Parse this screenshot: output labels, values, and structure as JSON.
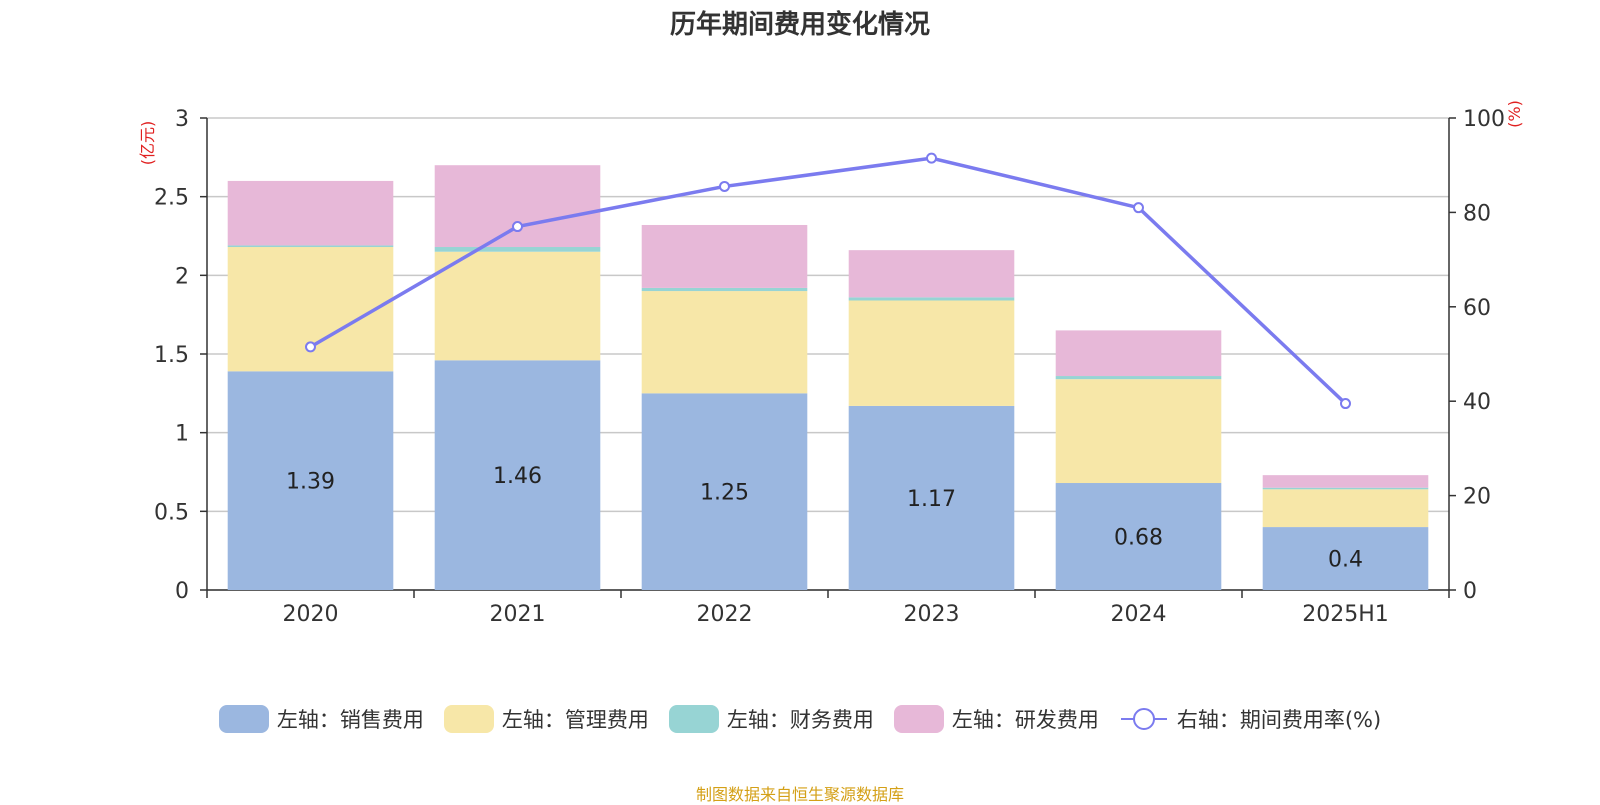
{
  "chart_data": {
    "type": "bar",
    "title": "历年期间费用变化情况",
    "categories": [
      "2020",
      "2021",
      "2022",
      "2023",
      "2024",
      "2025H1"
    ],
    "series": [
      {
        "name": "左轴：销售费用",
        "axis": "left",
        "color": "#9bb7e0",
        "values": [
          1.39,
          1.46,
          1.25,
          1.17,
          0.68,
          0.4
        ],
        "labels": [
          "1.39",
          "1.46",
          "1.25",
          "1.17",
          "0.68",
          "0.4"
        ]
      },
      {
        "name": "左轴：管理费用",
        "axis": "left",
        "color": "#f7e7a8",
        "values": [
          0.79,
          0.69,
          0.65,
          0.67,
          0.66,
          0.24
        ]
      },
      {
        "name": "左轴：财务费用",
        "axis": "left",
        "color": "#97d4d4",
        "values": [
          0.01,
          0.03,
          0.02,
          0.02,
          0.02,
          0.01
        ]
      },
      {
        "name": "左轴：研发费用",
        "axis": "left",
        "color": "#e7b8d8",
        "values": [
          0.41,
          0.52,
          0.4,
          0.3,
          0.29,
          0.08
        ]
      },
      {
        "name": "右轴：期间费用率(%)",
        "axis": "right",
        "type": "line",
        "color": "#7b7bef",
        "values": [
          51.5,
          77,
          85.5,
          91.5,
          81,
          39.5
        ]
      }
    ],
    "left_axis": {
      "label": "(亿元)",
      "ylim": [
        0,
        3
      ],
      "ticks": [
        "0",
        "0.5",
        "1",
        "1.5",
        "2",
        "2.5",
        "3"
      ]
    },
    "right_axis": {
      "label": "(%)",
      "ylim": [
        0,
        100
      ],
      "ticks": [
        "0",
        "20",
        "40",
        "60",
        "80",
        "100"
      ]
    },
    "grid": true,
    "legend_position": "bottom"
  },
  "source": "制图数据来自恒生聚源数据库"
}
